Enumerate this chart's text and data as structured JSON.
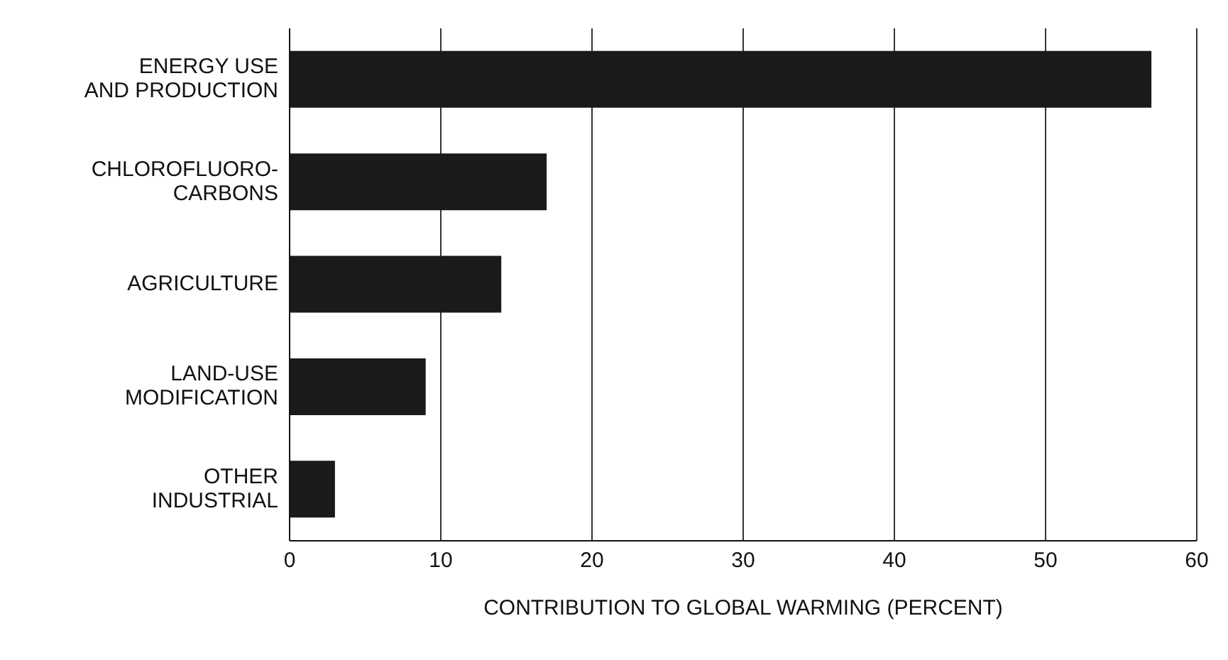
{
  "chart_data": {
    "type": "bar",
    "orientation": "horizontal",
    "xlabel": "CONTRIBUTION TO GLOBAL WARMING (PERCENT)",
    "categories": [
      "ENERGY USE\nAND PRODUCTION",
      "CHLOROFLUORO-\nCARBONS",
      "AGRICULTURE",
      "LAND-USE\nMODIFICATION",
      "OTHER\nINDUSTRIAL"
    ],
    "values": [
      57,
      17,
      14,
      9,
      3
    ],
    "color": "#1a1a1a",
    "xlim": [
      0,
      60
    ],
    "xticks": [
      0,
      10,
      20,
      30,
      40,
      50,
      60
    ],
    "grid": "x"
  }
}
